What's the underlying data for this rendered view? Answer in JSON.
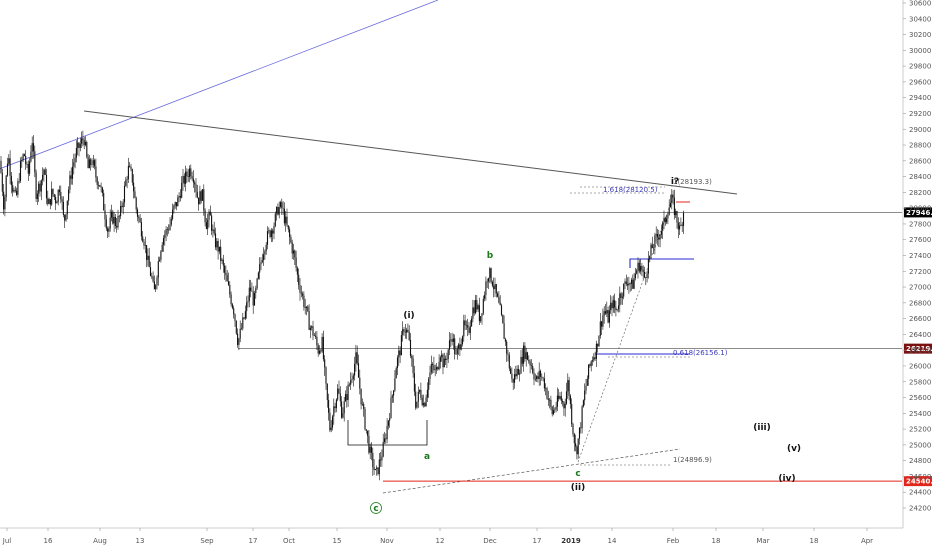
{
  "chart_data": {
    "type": "candlestick",
    "title": "",
    "xlabel": "",
    "ylabel": "",
    "ylim": [
      24000,
      30700
    ],
    "y_ticks": [
      24200,
      24400,
      24600,
      24800,
      25000,
      25200,
      25400,
      25600,
      25800,
      26000,
      26200,
      26400,
      26600,
      26800,
      27000,
      27200,
      27400,
      27600,
      27800,
      28000,
      28200,
      28400,
      28600,
      28800,
      29000,
      29200,
      29400,
      29600,
      29800,
      30000,
      30200,
      30400,
      30600
    ],
    "y_tick_labels": [
      "24200.0",
      "24400.0",
      "24600.0",
      "24800.0",
      "25000.0",
      "25200.0",
      "25400.0",
      "25600.0",
      "25800.0",
      "26000.0",
      "26200.0",
      "26400.0",
      "26600.0",
      "26800.0",
      "27000.0",
      "27200.0",
      "27400.0",
      "27600.0",
      "27800.0",
      "28000.0",
      "28200.0",
      "28400.0",
      "28600.0",
      "28800.0",
      "29000.0",
      "29200.0",
      "29400.0",
      "29600.0",
      "29800.0",
      "30000.0",
      "30200.0",
      "30400.0",
      "30600.0"
    ],
    "x_ticks": [
      {
        "label": "Jul",
        "bold": false
      },
      {
        "label": "16",
        "bold": false
      },
      {
        "label": "Aug",
        "bold": false
      },
      {
        "label": "13",
        "bold": false
      },
      {
        "label": "Sep",
        "bold": false
      },
      {
        "label": "17",
        "bold": false
      },
      {
        "label": "Oct",
        "bold": false
      },
      {
        "label": "15",
        "bold": false
      },
      {
        "label": "Nov",
        "bold": false
      },
      {
        "label": "12",
        "bold": false
      },
      {
        "label": "Dec",
        "bold": false
      },
      {
        "label": "17",
        "bold": false
      },
      {
        "label": "2019",
        "bold": true
      },
      {
        "label": "14",
        "bold": false
      },
      {
        "label": "Feb",
        "bold": false
      },
      {
        "label": "18",
        "bold": false
      },
      {
        "label": "Mar",
        "bold": false
      },
      {
        "label": "18",
        "bold": false
      },
      {
        "label": "Apr",
        "bold": false
      }
    ],
    "price_path": [
      [
        0,
        28600
      ],
      [
        4,
        28000
      ],
      [
        8,
        28700
      ],
      [
        12,
        28300
      ],
      [
        16,
        28100
      ],
      [
        20,
        28500
      ],
      [
        24,
        28700
      ],
      [
        28,
        28400
      ],
      [
        32,
        28900
      ],
      [
        36,
        28200
      ],
      [
        40,
        28300
      ],
      [
        44,
        28500
      ],
      [
        48,
        28000
      ],
      [
        52,
        28200
      ],
      [
        56,
        28100
      ],
      [
        60,
        28300
      ],
      [
        64,
        27800
      ],
      [
        68,
        28200
      ],
      [
        72,
        28500
      ],
      [
        76,
        28700
      ],
      [
        80,
        28800
      ],
      [
        84,
        28900
      ],
      [
        88,
        28500
      ],
      [
        92,
        28600
      ],
      [
        96,
        28400
      ],
      [
        100,
        28300
      ],
      [
        104,
        28000
      ],
      [
        108,
        27700
      ],
      [
        112,
        27900
      ],
      [
        116,
        27800
      ],
      [
        120,
        27900
      ],
      [
        124,
        28200
      ],
      [
        128,
        28500
      ],
      [
        132,
        28400
      ],
      [
        136,
        28000
      ],
      [
        140,
        27800
      ],
      [
        144,
        27600
      ],
      [
        148,
        27300
      ],
      [
        152,
        27100
      ],
      [
        154,
        26900
      ],
      [
        158,
        27300
      ],
      [
        162,
        27600
      ],
      [
        166,
        27700
      ],
      [
        170,
        27800
      ],
      [
        174,
        28000
      ],
      [
        178,
        28100
      ],
      [
        182,
        28300
      ],
      [
        186,
        28400
      ],
      [
        190,
        28500
      ],
      [
        194,
        28400
      ],
      [
        198,
        28100
      ],
      [
        202,
        28200
      ],
      [
        206,
        27800
      ],
      [
        210,
        27900
      ],
      [
        214,
        27600
      ],
      [
        218,
        27500
      ],
      [
        222,
        27300
      ],
      [
        226,
        27100
      ],
      [
        230,
        26900
      ],
      [
        234,
        26700
      ],
      [
        238,
        26300
      ],
      [
        242,
        26500
      ],
      [
        246,
        26700
      ],
      [
        250,
        27000
      ],
      [
        254,
        26800
      ],
      [
        258,
        27100
      ],
      [
        262,
        27400
      ],
      [
        266,
        27600
      ],
      [
        270,
        27700
      ],
      [
        274,
        27800
      ],
      [
        278,
        28000
      ],
      [
        282,
        28000
      ],
      [
        286,
        27800
      ],
      [
        290,
        27600
      ],
      [
        294,
        27400
      ],
      [
        298,
        27100
      ],
      [
        302,
        26900
      ],
      [
        306,
        26700
      ],
      [
        310,
        26500
      ],
      [
        314,
        26400
      ],
      [
        318,
        26200
      ],
      [
        322,
        26300
      ],
      [
        326,
        25700
      ],
      [
        330,
        25200
      ],
      [
        334,
        25500
      ],
      [
        338,
        25700
      ],
      [
        342,
        25400
      ],
      [
        346,
        25600
      ],
      [
        350,
        25800
      ],
      [
        354,
        26000
      ],
      [
        356,
        26100
      ],
      [
        358,
        25900
      ],
      [
        362,
        25500
      ],
      [
        366,
        25200
      ],
      [
        370,
        24900
      ],
      [
        374,
        24700
      ],
      [
        376,
        24600
      ],
      [
        380,
        24800
      ],
      [
        384,
        25000
      ],
      [
        388,
        25300
      ],
      [
        392,
        25600
      ],
      [
        396,
        26000
      ],
      [
        400,
        26200
      ],
      [
        404,
        26500
      ],
      [
        408,
        26400
      ],
      [
        412,
        26000
      ],
      [
        416,
        25500
      ],
      [
        420,
        25700
      ],
      [
        424,
        25500
      ],
      [
        428,
        25800
      ],
      [
        432,
        26000
      ],
      [
        436,
        25900
      ],
      [
        440,
        26200
      ],
      [
        444,
        26000
      ],
      [
        448,
        26200
      ],
      [
        452,
        26400
      ],
      [
        456,
        26100
      ],
      [
        460,
        26300
      ],
      [
        464,
        26500
      ],
      [
        468,
        26400
      ],
      [
        472,
        26700
      ],
      [
        476,
        26800
      ],
      [
        480,
        26600
      ],
      [
        484,
        26900
      ],
      [
        488,
        27200
      ],
      [
        492,
        27100
      ],
      [
        496,
        26900
      ],
      [
        500,
        26700
      ],
      [
        504,
        26400
      ],
      [
        508,
        26100
      ],
      [
        512,
        25800
      ],
      [
        516,
        25900
      ],
      [
        520,
        26000
      ],
      [
        524,
        26200
      ],
      [
        528,
        26100
      ],
      [
        532,
        26000
      ],
      [
        536,
        25800
      ],
      [
        540,
        25900
      ],
      [
        544,
        25800
      ],
      [
        548,
        25600
      ],
      [
        552,
        25400
      ],
      [
        556,
        25500
      ],
      [
        560,
        25600
      ],
      [
        564,
        25500
      ],
      [
        568,
        25800
      ],
      [
        572,
        25300
      ],
      [
        576,
        24900
      ],
      [
        580,
        25200
      ],
      [
        584,
        25600
      ],
      [
        588,
        25900
      ],
      [
        592,
        26100
      ],
      [
        596,
        26200
      ],
      [
        600,
        26500
      ],
      [
        604,
        26700
      ],
      [
        608,
        26600
      ],
      [
        612,
        26800
      ],
      [
        616,
        26700
      ],
      [
        620,
        26900
      ],
      [
        624,
        27000
      ],
      [
        628,
        27100
      ],
      [
        632,
        27000
      ],
      [
        636,
        27200
      ],
      [
        640,
        27300
      ],
      [
        644,
        27100
      ],
      [
        648,
        27300
      ],
      [
        652,
        27500
      ],
      [
        656,
        27600
      ],
      [
        660,
        27700
      ],
      [
        664,
        27800
      ],
      [
        668,
        28000
      ],
      [
        672,
        28100
      ],
      [
        676,
        27900
      ],
      [
        680,
        27700
      ],
      [
        684,
        28000
      ]
    ],
    "horizontal_levels": [
      {
        "value": 27946.3,
        "label": "27946.3",
        "badge_color": "#000000"
      },
      {
        "value": 26219.6,
        "label": "26219.6",
        "badge_color": "#7b1010"
      },
      {
        "value": 24540.6,
        "label": "24540.6",
        "badge_color": "#e0261b"
      }
    ],
    "wave_labels": [
      {
        "text": "(i)",
        "style": "dark"
      },
      {
        "text": "b",
        "style": "green"
      },
      {
        "text": "a",
        "style": "green"
      },
      {
        "text": "c",
        "style": "green"
      },
      {
        "text": "(ii)",
        "style": "dark"
      },
      {
        "text": "i?",
        "style": "dark"
      },
      {
        "text": "(iii)",
        "style": "dark"
      },
      {
        "text": "(v)",
        "style": "dark"
      },
      {
        "text": "(iv)",
        "style": "dark"
      },
      {
        "text": "c",
        "style": "circled"
      }
    ],
    "fib_annotations": [
      {
        "text": "1.618(28120.5)",
        "color": "#3b3bb5"
      },
      {
        "text": "1(28193.3)",
        "color": "#555555"
      },
      {
        "text": "0.618(26156.1)",
        "color": "#3b3bb5"
      },
      {
        "text": "1(24896.9)",
        "color": "#555555"
      }
    ],
    "colors": {
      "candle": "#111111",
      "trend_blue": "#6a6adf",
      "resistance": "#555555",
      "level_blue": "#2a2ad6",
      "red_line": "#e0261b"
    }
  }
}
